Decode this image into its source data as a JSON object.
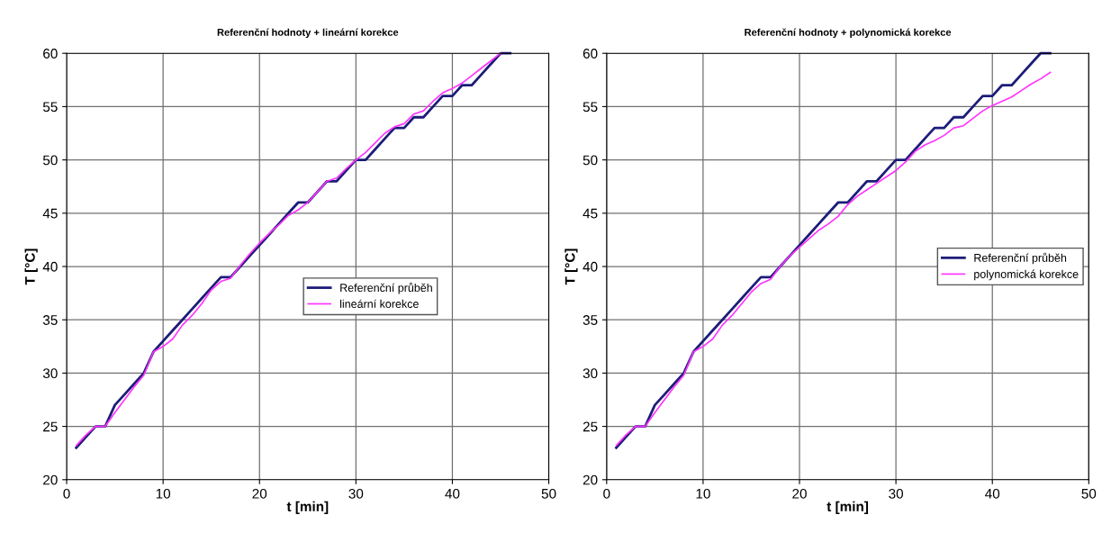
{
  "chart_data": [
    {
      "type": "line",
      "title": "Referenční hodnoty + lineární korekce",
      "xlabel": "t [min]",
      "ylabel": "T [°C]",
      "xlim": [
        0,
        50
      ],
      "ylim": [
        20,
        60
      ],
      "xticks": [
        0,
        10,
        20,
        30,
        40,
        50
      ],
      "yticks": [
        20,
        25,
        30,
        35,
        40,
        45,
        50,
        55,
        60
      ],
      "grid": true,
      "legend": "center",
      "marker": "none",
      "line_style": "solid",
      "x": [
        1,
        2,
        3,
        4,
        5,
        6,
        7,
        8,
        9,
        10,
        11,
        12,
        13,
        14,
        15,
        16,
        17,
        18,
        19,
        20,
        21,
        22,
        23,
        24,
        25,
        26,
        27,
        28,
        29,
        30,
        31,
        32,
        33,
        34,
        35,
        36,
        37,
        38,
        39,
        40,
        41,
        42,
        43,
        44,
        45,
        46
      ],
      "series": [
        {
          "name": "Referenční průběh",
          "color": "#1c1c78",
          "values": [
            23,
            24,
            25,
            25,
            27,
            28,
            29,
            30,
            32,
            33,
            34,
            35,
            36,
            37,
            38,
            39,
            39,
            40,
            41,
            42,
            43,
            44,
            45,
            46,
            46,
            47,
            48,
            48,
            49,
            50,
            50,
            51,
            52,
            53,
            53,
            54,
            54,
            55,
            56,
            56,
            57,
            57,
            58,
            59,
            60,
            60
          ]
        },
        {
          "name": "lineární korekce",
          "color": "#ff33ff",
          "values": [
            23.2,
            24.2,
            25,
            25,
            26.3,
            27.5,
            28.7,
            29.8,
            32,
            32.5,
            33.2,
            34.5,
            35.4,
            36.5,
            37.8,
            38.6,
            38.9,
            40.1,
            41.2,
            42.2,
            43.1,
            43.9,
            44.8,
            45.3,
            46,
            47,
            48,
            48.3,
            49.2,
            50,
            50.7,
            51.6,
            52.5,
            53.1,
            53.4,
            54.3,
            54.6,
            55.5,
            56.3,
            56.7,
            57.2,
            57.9,
            58.6,
            59.3,
            60,
            null
          ]
        }
      ]
    },
    {
      "type": "line",
      "title": "Referenční hodnoty + polynomická korekce",
      "xlabel": "t [min]",
      "ylabel": "T [°C]",
      "xlim": [
        0,
        50
      ],
      "ylim": [
        20,
        60
      ],
      "xticks": [
        0,
        10,
        20,
        30,
        40,
        50
      ],
      "yticks": [
        20,
        25,
        30,
        35,
        40,
        45,
        50,
        55,
        60
      ],
      "grid": true,
      "legend": "center right",
      "marker": "none",
      "line_style": "solid",
      "x": [
        1,
        2,
        3,
        4,
        5,
        6,
        7,
        8,
        9,
        10,
        11,
        12,
        13,
        14,
        15,
        16,
        17,
        18,
        19,
        20,
        21,
        22,
        23,
        24,
        25,
        26,
        27,
        28,
        29,
        30,
        31,
        32,
        33,
        34,
        35,
        36,
        37,
        38,
        39,
        40,
        41,
        42,
        43,
        44,
        45,
        46
      ],
      "series": [
        {
          "name": "Referenční průběh",
          "color": "#1c1c78",
          "values": [
            23,
            24,
            25,
            25,
            27,
            28,
            29,
            30,
            32,
            33,
            34,
            35,
            36,
            37,
            38,
            39,
            39,
            40,
            41,
            42,
            43,
            44,
            45,
            46,
            46,
            47,
            48,
            48,
            49,
            50,
            50,
            51,
            52,
            53,
            53,
            54,
            54,
            55,
            56,
            56,
            57,
            57,
            58,
            59,
            60,
            60
          ]
        },
        {
          "name": "polynomická korekce",
          "color": "#ff33ff",
          "values": [
            23.2,
            24.2,
            25,
            25,
            26.3,
            27.5,
            28.7,
            29.8,
            32,
            32.5,
            33.2,
            34.5,
            35.4,
            36.5,
            37.6,
            38.4,
            38.8,
            40,
            41,
            41.8,
            42.6,
            43.4,
            44,
            44.7,
            45.8,
            46.6,
            47.2,
            47.8,
            48.4,
            49,
            49.8,
            50.8,
            51.4,
            51.8,
            52.3,
            53,
            53.2,
            53.9,
            54.6,
            55.1,
            55.5,
            55.9,
            56.5,
            57.1,
            57.6,
            58.2
          ]
        }
      ]
    }
  ]
}
